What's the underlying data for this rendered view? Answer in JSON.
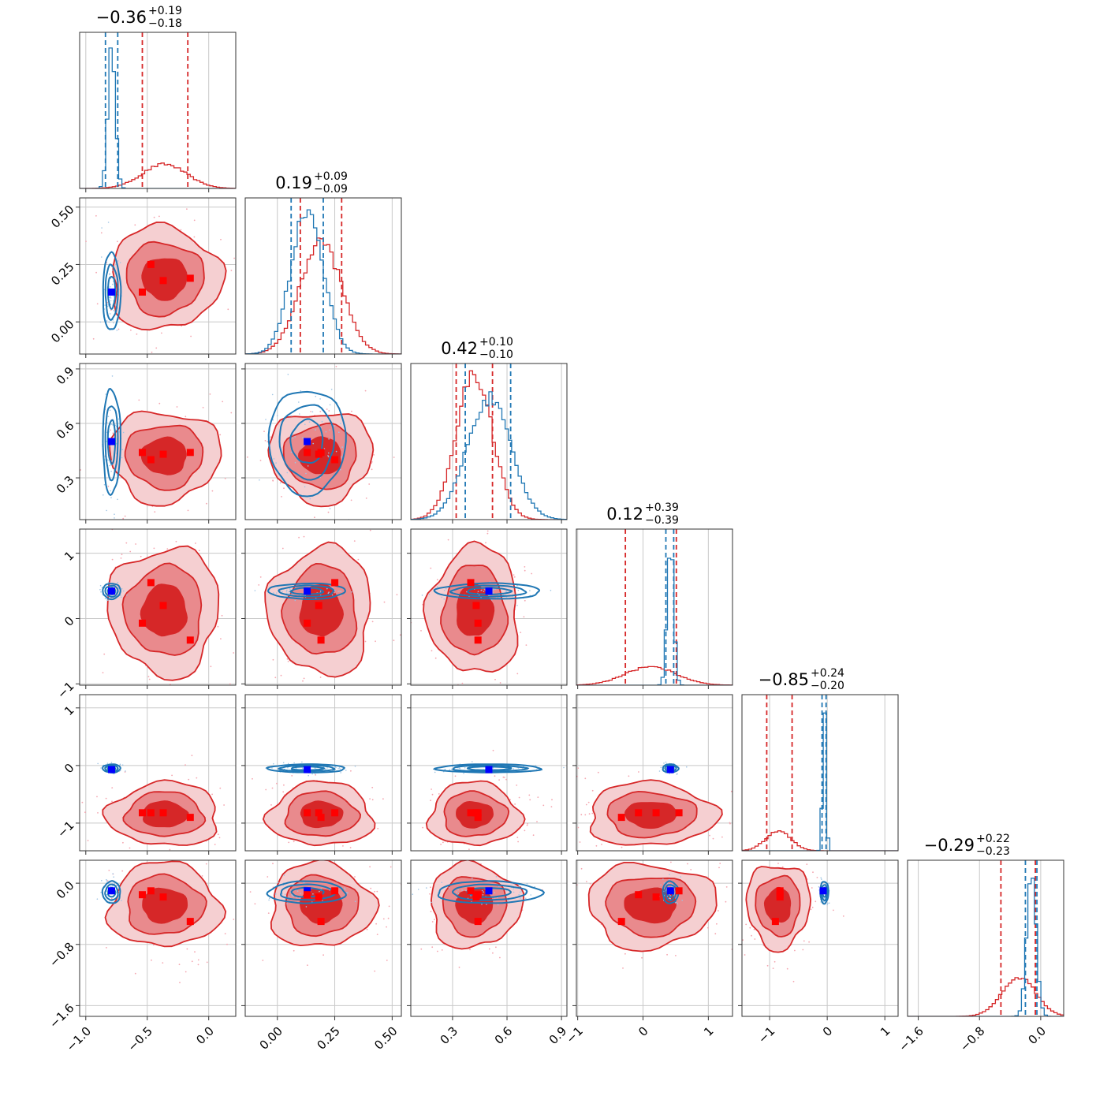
{
  "chart_data": {
    "type": "corner",
    "n_params": 6,
    "grid": true,
    "colors": {
      "red": "#d62728",
      "red_mid": "#e98a8d",
      "red_light": "#f5cfd1",
      "blue": "#1f77b4",
      "marker_blue": "#0000ff",
      "marker_red": "#ff0000"
    },
    "params": [
      {
        "range": [
          -1.05,
          0.22
        ],
        "ticks": [
          -1.0,
          -0.5,
          0.0
        ],
        "tick_labels": [
          "−1.0",
          "−0.5",
          "0.0"
        ],
        "title_value": "−0.36",
        "title_plus": "+0.19",
        "title_minus": "−0.18"
      },
      {
        "range": [
          -0.14,
          0.54
        ],
        "ticks": [
          0.0,
          0.25,
          0.5
        ],
        "tick_labels": [
          "0.00",
          "0.25",
          "0.50"
        ],
        "title_value": "0.19",
        "title_plus": "+0.09",
        "title_minus": "−0.09"
      },
      {
        "range": [
          0.07,
          0.93
        ],
        "ticks": [
          0.3,
          0.6,
          0.9
        ],
        "tick_labels": [
          "0.3",
          "0.6",
          "0.9"
        ],
        "title_value": "0.42",
        "title_plus": "+0.10",
        "title_minus": "−0.10"
      },
      {
        "range": [
          -1.02,
          1.37
        ],
        "ticks": [
          -1,
          0,
          1
        ],
        "tick_labels": [
          "−1",
          "0",
          "1"
        ],
        "title_value": "0.12",
        "title_plus": "+0.39",
        "title_minus": "−0.39"
      },
      {
        "range": [
          -1.48,
          1.23
        ],
        "ticks": [
          -1,
          0,
          1
        ],
        "tick_labels": [
          "−1",
          "0",
          "1"
        ],
        "title_value": "−0.85",
        "title_plus": "+0.24",
        "title_minus": "−0.20"
      },
      {
        "range": [
          -1.74,
          0.3
        ],
        "ticks": [
          -1.6,
          -0.8,
          0.0
        ],
        "tick_labels": [
          "−1.6",
          "−0.8",
          "0.0"
        ],
        "title_value": "−0.29",
        "title_plus": "+0.22",
        "title_minus": "−0.23"
      }
    ],
    "red_posterior": {
      "mean": [
        -0.36,
        0.19,
        0.42,
        0.12,
        -0.85,
        -0.29
      ],
      "sd": [
        0.18,
        0.09,
        0.1,
        0.39,
        0.22,
        0.22
      ],
      "quantiles": [
        [
          -0.54,
          -0.17
        ],
        [
          0.1,
          0.28
        ],
        [
          0.32,
          0.52
        ],
        [
          -0.27,
          0.51
        ],
        [
          -1.05,
          -0.61
        ],
        [
          -0.52,
          -0.07
        ]
      ]
    },
    "blue_posterior": {
      "mean": [
        -0.79,
        0.13,
        0.5,
        0.42,
        -0.05,
        -0.12
      ],
      "sd": [
        0.03,
        0.07,
        0.12,
        0.05,
        0.03,
        0.06
      ],
      "quantiles": [
        [
          -0.84,
          -0.74
        ],
        [
          0.06,
          0.2
        ],
        [
          0.37,
          0.62
        ],
        [
          0.35,
          0.47
        ],
        [
          -0.09,
          -0.02
        ],
        [
          -0.2,
          -0.05
        ]
      ]
    },
    "markers": [
      {
        "color": "blue",
        "values": [
          -0.79,
          0.13,
          0.5,
          0.42,
          -0.07,
          -0.1
        ]
      },
      {
        "color": "red",
        "values": [
          -0.54,
          0.13,
          0.44,
          -0.07,
          -0.82,
          -0.15
        ]
      },
      {
        "color": "red",
        "values": [
          -0.47,
          0.25,
          0.4,
          0.55,
          -0.82,
          -0.1
        ]
      },
      {
        "color": "red",
        "values": [
          -0.37,
          0.18,
          0.43,
          0.2,
          -0.82,
          -0.18
        ]
      },
      {
        "color": "red",
        "values": [
          -0.15,
          0.19,
          0.44,
          -0.33,
          -0.9,
          -0.5
        ]
      }
    ]
  }
}
